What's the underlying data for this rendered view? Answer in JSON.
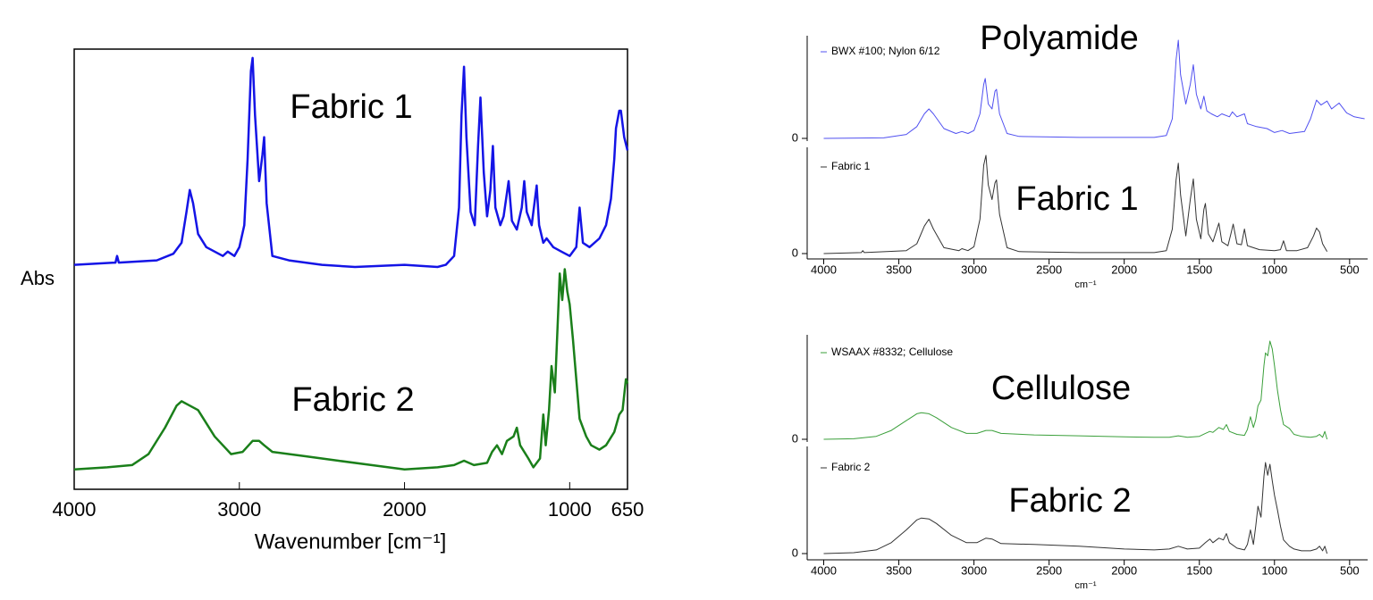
{
  "chart_data": [
    {
      "type": "line",
      "xlabel": "Wavenumber [cm⁻¹]",
      "ylabel": "Abs",
      "xlim": [
        4000,
        650
      ],
      "ylim": [
        0,
        1
      ],
      "xticks": [
        4000,
        3000,
        2000,
        1000,
        650
      ],
      "series": [
        {
          "name": "Fabric 1",
          "color": "#1414e6",
          "x": [
            4000,
            3750,
            3740,
            3730,
            3500,
            3400,
            3350,
            3320,
            3300,
            3280,
            3250,
            3200,
            3100,
            3070,
            3030,
            3000,
            2970,
            2950,
            2930,
            2920,
            2905,
            2880,
            2860,
            2850,
            2835,
            2800,
            2700,
            2500,
            2300,
            2000,
            1800,
            1750,
            1700,
            1670,
            1655,
            1640,
            1625,
            1600,
            1575,
            1555,
            1540,
            1520,
            1500,
            1480,
            1465,
            1450,
            1420,
            1400,
            1370,
            1350,
            1320,
            1290,
            1275,
            1260,
            1230,
            1200,
            1185,
            1160,
            1140,
            1100,
            1050,
            1000,
            960,
            940,
            920,
            880,
            820,
            780,
            750,
            730,
            720,
            700,
            690,
            670,
            650
          ],
          "values": [
            0.51,
            0.515,
            0.53,
            0.515,
            0.52,
            0.535,
            0.56,
            0.63,
            0.68,
            0.65,
            0.58,
            0.55,
            0.53,
            0.54,
            0.53,
            0.55,
            0.6,
            0.75,
            0.95,
            0.98,
            0.85,
            0.7,
            0.76,
            0.8,
            0.65,
            0.53,
            0.52,
            0.51,
            0.505,
            0.51,
            0.505,
            0.51,
            0.53,
            0.64,
            0.85,
            0.96,
            0.8,
            0.63,
            0.6,
            0.78,
            0.89,
            0.72,
            0.62,
            0.68,
            0.78,
            0.64,
            0.6,
            0.62,
            0.7,
            0.61,
            0.59,
            0.64,
            0.7,
            0.63,
            0.6,
            0.69,
            0.6,
            0.56,
            0.57,
            0.55,
            0.54,
            0.53,
            0.55,
            0.64,
            0.56,
            0.55,
            0.57,
            0.6,
            0.66,
            0.75,
            0.82,
            0.86,
            0.86,
            0.8,
            0.77
          ]
        },
        {
          "name": "Fabric 2",
          "color": "#1a7f1a",
          "x": [
            4000,
            3800,
            3650,
            3550,
            3450,
            3380,
            3350,
            3300,
            3250,
            3150,
            3050,
            2980,
            2920,
            2880,
            2850,
            2800,
            2600,
            2400,
            2200,
            2000,
            1800,
            1700,
            1640,
            1580,
            1500,
            1470,
            1440,
            1410,
            1380,
            1340,
            1320,
            1300,
            1250,
            1220,
            1180,
            1160,
            1145,
            1125,
            1110,
            1090,
            1070,
            1060,
            1045,
            1030,
            1015,
            1000,
            980,
            960,
            940,
            900,
            870,
            820,
            780,
            730,
            700,
            680,
            660,
            650
          ],
          "values": [
            0.045,
            0.05,
            0.055,
            0.08,
            0.14,
            0.19,
            0.2,
            0.19,
            0.18,
            0.12,
            0.08,
            0.085,
            0.11,
            0.11,
            0.1,
            0.085,
            0.075,
            0.065,
            0.055,
            0.045,
            0.05,
            0.055,
            0.065,
            0.055,
            0.06,
            0.085,
            0.1,
            0.08,
            0.11,
            0.12,
            0.14,
            0.1,
            0.07,
            0.05,
            0.07,
            0.17,
            0.1,
            0.18,
            0.28,
            0.22,
            0.4,
            0.49,
            0.43,
            0.5,
            0.45,
            0.42,
            0.34,
            0.25,
            0.16,
            0.12,
            0.1,
            0.09,
            0.1,
            0.13,
            0.17,
            0.18,
            0.25,
            0.24
          ]
        }
      ]
    },
    {
      "type": "line",
      "annotation": "Polyamide",
      "xlim": [
        4110,
        380
      ],
      "ylim": [
        0,
        1
      ],
      "yticks": [
        0
      ],
      "series": [
        {
          "name": "BWX #100; Nylon 6/12",
          "color": "#5050f0",
          "x": [
            4000,
            3600,
            3450,
            3380,
            3330,
            3300,
            3270,
            3200,
            3120,
            3080,
            3040,
            3000,
            2960,
            2935,
            2925,
            2905,
            2880,
            2860,
            2850,
            2830,
            2780,
            2700,
            2300,
            1800,
            1720,
            1680,
            1655,
            1640,
            1625,
            1590,
            1560,
            1540,
            1520,
            1490,
            1470,
            1450,
            1420,
            1380,
            1350,
            1300,
            1280,
            1250,
            1200,
            1180,
            1120,
            1050,
            1000,
            950,
            900,
            800,
            760,
            720,
            690,
            650,
            620,
            570,
            520,
            470,
            400
          ],
          "values": [
            0,
            0.005,
            0.04,
            0.12,
            0.25,
            0.3,
            0.25,
            0.1,
            0.05,
            0.07,
            0.05,
            0.08,
            0.25,
            0.55,
            0.61,
            0.35,
            0.3,
            0.48,
            0.5,
            0.25,
            0.05,
            0.02,
            0.01,
            0.01,
            0.03,
            0.2,
            0.8,
            1.0,
            0.65,
            0.35,
            0.55,
            0.75,
            0.45,
            0.3,
            0.43,
            0.28,
            0.25,
            0.22,
            0.25,
            0.22,
            0.27,
            0.22,
            0.25,
            0.15,
            0.12,
            0.1,
            0.06,
            0.08,
            0.05,
            0.07,
            0.2,
            0.39,
            0.34,
            0.38,
            0.3,
            0.36,
            0.26,
            0.22,
            0.2
          ]
        }
      ]
    },
    {
      "type": "line",
      "annotation": "Fabric 1",
      "xlabel": "cm⁻¹",
      "xlim": [
        4110,
        380
      ],
      "ylim": [
        0,
        1
      ],
      "yticks": [
        0
      ],
      "xticks": [
        4000,
        3500,
        3000,
        2500,
        2000,
        1500,
        1000,
        500
      ],
      "series": [
        {
          "name": "Fabric 1",
          "color": "#333333",
          "x": [
            4000,
            3750,
            3740,
            3730,
            3450,
            3380,
            3330,
            3300,
            3270,
            3200,
            3100,
            3080,
            3040,
            3000,
            2960,
            2935,
            2920,
            2905,
            2880,
            2860,
            2850,
            2830,
            2780,
            2700,
            2300,
            1800,
            1720,
            1680,
            1655,
            1640,
            1625,
            1590,
            1560,
            1540,
            1520,
            1490,
            1470,
            1460,
            1440,
            1410,
            1370,
            1350,
            1310,
            1290,
            1275,
            1250,
            1220,
            1200,
            1180,
            1100,
            1000,
            960,
            940,
            920,
            850,
            780,
            740,
            720,
            700,
            680,
            650
          ],
          "values": [
            0,
            0.01,
            0.03,
            0.01,
            0.03,
            0.1,
            0.28,
            0.35,
            0.25,
            0.06,
            0.03,
            0.05,
            0.03,
            0.07,
            0.35,
            0.9,
            1.0,
            0.7,
            0.55,
            0.72,
            0.75,
            0.4,
            0.06,
            0.02,
            0.01,
            0.01,
            0.03,
            0.25,
            0.75,
            0.92,
            0.6,
            0.18,
            0.55,
            0.76,
            0.35,
            0.15,
            0.45,
            0.51,
            0.2,
            0.12,
            0.31,
            0.12,
            0.08,
            0.2,
            0.3,
            0.1,
            0.09,
            0.25,
            0.08,
            0.04,
            0.03,
            0.04,
            0.13,
            0.03,
            0.03,
            0.06,
            0.18,
            0.26,
            0.22,
            0.1,
            0.02
          ]
        }
      ]
    },
    {
      "type": "line",
      "annotation": "Cellulose",
      "xlim": [
        4110,
        380
      ],
      "ylim": [
        0,
        1
      ],
      "yticks": [
        0
      ],
      "series": [
        {
          "name": "WSAAX #8332; Cellulose",
          "color": "#3a9f3a",
          "x": [
            4000,
            3800,
            3650,
            3550,
            3450,
            3380,
            3350,
            3300,
            3250,
            3150,
            3050,
            2980,
            2920,
            2880,
            2820,
            2600,
            2300,
            2000,
            1800,
            1700,
            1640,
            1580,
            1500,
            1460,
            1430,
            1410,
            1370,
            1340,
            1320,
            1300,
            1250,
            1200,
            1180,
            1160,
            1140,
            1125,
            1110,
            1090,
            1070,
            1060,
            1045,
            1030,
            1015,
            1000,
            980,
            960,
            940,
            920,
            900,
            870,
            820,
            760,
            720,
            700,
            680,
            665,
            650
          ],
          "values": [
            0,
            0.005,
            0.03,
            0.09,
            0.19,
            0.26,
            0.27,
            0.26,
            0.22,
            0.12,
            0.06,
            0.06,
            0.09,
            0.09,
            0.06,
            0.045,
            0.035,
            0.025,
            0.02,
            0.02,
            0.035,
            0.02,
            0.03,
            0.06,
            0.08,
            0.07,
            0.12,
            0.1,
            0.15,
            0.08,
            0.05,
            0.04,
            0.1,
            0.23,
            0.12,
            0.2,
            0.34,
            0.4,
            0.75,
            0.88,
            0.85,
            1.0,
            0.92,
            0.75,
            0.5,
            0.3,
            0.15,
            0.13,
            0.11,
            0.05,
            0.03,
            0.02,
            0.03,
            0.05,
            0.02,
            0.08,
            0.0
          ]
        }
      ]
    },
    {
      "type": "line",
      "annotation": "Fabric 2",
      "xlabel": "cm⁻¹",
      "xlim": [
        4110,
        380
      ],
      "ylim": [
        0,
        1
      ],
      "yticks": [
        0
      ],
      "xticks": [
        4000,
        3500,
        3000,
        2500,
        2000,
        1500,
        1000,
        500
      ],
      "series": [
        {
          "name": "Fabric 2",
          "color": "#333333",
          "x": [
            4000,
            3800,
            3650,
            3550,
            3450,
            3380,
            3350,
            3300,
            3250,
            3150,
            3050,
            2980,
            2920,
            2880,
            2820,
            2600,
            2300,
            2000,
            1800,
            1700,
            1640,
            1580,
            1500,
            1460,
            1430,
            1410,
            1370,
            1340,
            1320,
            1300,
            1250,
            1200,
            1180,
            1160,
            1140,
            1125,
            1110,
            1090,
            1070,
            1060,
            1045,
            1030,
            1015,
            1000,
            980,
            960,
            940,
            900,
            870,
            820,
            760,
            720,
            700,
            680,
            665,
            650
          ],
          "values": [
            0,
            0.01,
            0.04,
            0.12,
            0.26,
            0.37,
            0.39,
            0.38,
            0.33,
            0.2,
            0.12,
            0.12,
            0.17,
            0.16,
            0.11,
            0.1,
            0.08,
            0.05,
            0.04,
            0.05,
            0.08,
            0.05,
            0.06,
            0.12,
            0.16,
            0.12,
            0.17,
            0.15,
            0.22,
            0.12,
            0.06,
            0.04,
            0.1,
            0.26,
            0.1,
            0.3,
            0.52,
            0.4,
            0.85,
            1.0,
            0.86,
            0.98,
            0.8,
            0.64,
            0.48,
            0.3,
            0.15,
            0.08,
            0.05,
            0.03,
            0.03,
            0.05,
            0.08,
            0.03,
            0.08,
            0.0
          ]
        }
      ]
    }
  ]
}
